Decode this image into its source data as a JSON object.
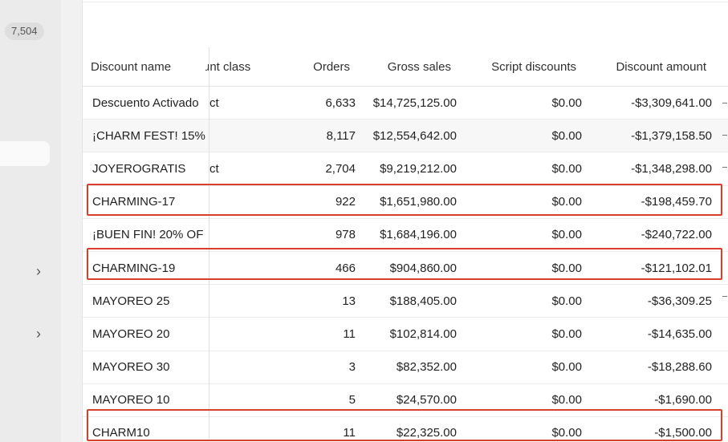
{
  "sidebar": {
    "count_badge": "7,504",
    "chevrons": [
      "chevron-right-icon",
      "chevron-right-icon"
    ]
  },
  "table": {
    "headers": {
      "name": "Discount name",
      "class": "unt class",
      "orders": "Orders",
      "gross": "Gross sales",
      "script": "Script discounts",
      "amount": "Discount amount"
    },
    "rows": [
      {
        "name": "Descuento Activado",
        "class": "ct",
        "orders": "6,633",
        "gross": "$14,725,125.00",
        "script": "$0.00",
        "amount": "-$3,309,641.00",
        "highlighted": false
      },
      {
        "name": "¡CHARM FEST! 15%",
        "class": "",
        "orders": "8,117",
        "gross": "$12,554,642.00",
        "script": "$0.00",
        "amount": "-$1,379,158.50",
        "highlighted": false
      },
      {
        "name": "JOYEROGRATIS",
        "class": "ct",
        "orders": "2,704",
        "gross": "$9,219,212.00",
        "script": "$0.00",
        "amount": "-$1,348,298.00",
        "highlighted": false
      },
      {
        "name": "CHARMING-17",
        "class": "",
        "orders": "922",
        "gross": "$1,651,980.00",
        "script": "$0.00",
        "amount": "-$198,459.70",
        "highlighted": true
      },
      {
        "name": "¡BUEN FIN! 20% OF",
        "class": "",
        "orders": "978",
        "gross": "$1,684,196.00",
        "script": "$0.00",
        "amount": "-$240,722.00",
        "highlighted": false
      },
      {
        "name": "CHARMING-19",
        "class": "",
        "orders": "466",
        "gross": "$904,860.00",
        "script": "$0.00",
        "amount": "-$121,102.01",
        "highlighted": true
      },
      {
        "name": "MAYOREO 25",
        "class": "",
        "orders": "13",
        "gross": "$188,405.00",
        "script": "$0.00",
        "amount": "-$36,309.25",
        "highlighted": false
      },
      {
        "name": "MAYOREO 20",
        "class": "",
        "orders": "11",
        "gross": "$102,814.00",
        "script": "$0.00",
        "amount": "-$14,635.00",
        "highlighted": false
      },
      {
        "name": "MAYOREO 30",
        "class": "",
        "orders": "3",
        "gross": "$82,352.00",
        "script": "$0.00",
        "amount": "-$18,288.60",
        "highlighted": false
      },
      {
        "name": "MAYOREO 10",
        "class": "",
        "orders": "5",
        "gross": "$24,570.00",
        "script": "$0.00",
        "amount": "-$1,690.00",
        "highlighted": false
      },
      {
        "name": "CHARM10",
        "class": "",
        "orders": "11",
        "gross": "$22,325.00",
        "script": "$0.00",
        "amount": "-$1,500.00",
        "highlighted": true
      }
    ]
  },
  "colors": {
    "highlight": "#d9402b",
    "alt_row": "#f7f7f7"
  }
}
